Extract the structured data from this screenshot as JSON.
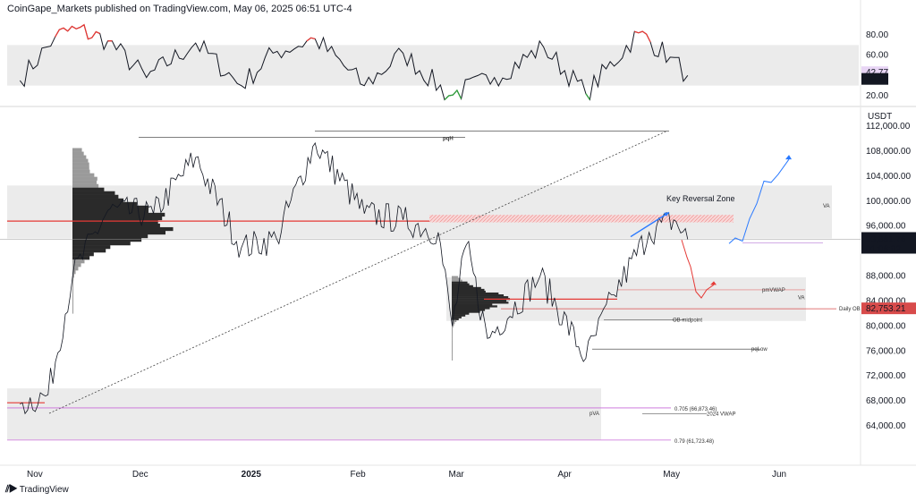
{
  "header": {
    "publisher": "CoinGape_Markets published on TradingView.com, May 06, 2025 06:51 UTC-4"
  },
  "footer": {
    "brand": "TradingView"
  },
  "colors": {
    "price": "#131722",
    "rsi": "#131722",
    "rsi_overbought": "#e53935",
    "rsi_oversold": "#2e9e3a",
    "poc": "#e53935",
    "fib": "#c86ad8",
    "projection_up": "#2979ff",
    "projection_down": "#e53935",
    "band": "#ebebeb"
  },
  "chart_data": [
    {
      "type": "line",
      "panel": "rsi",
      "y_ticks": [
        "80.00",
        "60.00",
        "20.00"
      ],
      "ylim": [
        15,
        90
      ],
      "band": [
        30,
        70
      ],
      "badges": [
        {
          "value": "42.77",
          "style": "light"
        },
        {
          "value": "39.68",
          "style": "dark"
        }
      ],
      "key_points": [
        {
          "x": "2024-10-28",
          "y": 35
        },
        {
          "x": "2024-11-07",
          "y": 78
        },
        {
          "x": "2024-11-13",
          "y": 86
        },
        {
          "x": "2024-11-22",
          "y": 74
        },
        {
          "x": "2024-12-03",
          "y": 38
        },
        {
          "x": "2024-12-17",
          "y": 72
        },
        {
          "x": "2024-12-30",
          "y": 30
        },
        {
          "x": "2025-01-08",
          "y": 62
        },
        {
          "x": "2025-01-20",
          "y": 76
        },
        {
          "x": "2025-02-03",
          "y": 30
        },
        {
          "x": "2025-02-14",
          "y": 62
        },
        {
          "x": "2025-02-27",
          "y": 20
        },
        {
          "x": "2025-03-12",
          "y": 38
        },
        {
          "x": "2025-03-26",
          "y": 68
        },
        {
          "x": "2025-04-07",
          "y": 22
        },
        {
          "x": "2025-04-22",
          "y": 82
        },
        {
          "x": "2025-05-01",
          "y": 58
        },
        {
          "x": "2025-05-06",
          "y": 40
        }
      ]
    },
    {
      "type": "line",
      "panel": "price",
      "currency": "USDT",
      "x_ticks": [
        "Nov",
        "Dec",
        "2025",
        "Feb",
        "Mar",
        "Apr",
        "May",
        "Jun"
      ],
      "y_ticks": [
        "112,000.00",
        "108,000.00",
        "104,000.00",
        "100,000.00",
        "96,000.00",
        "88,000.00",
        "84,000.00",
        "80,000.00",
        "76,000.00",
        "72,000.00",
        "68,000.00",
        "64,000.00"
      ],
      "ylim": [
        60000,
        114000
      ],
      "key_points": [
        {
          "x": "2024-10-28",
          "y": 67500
        },
        {
          "x": "2024-11-05",
          "y": 69000
        },
        {
          "x": "2024-11-12",
          "y": 88000
        },
        {
          "x": "2024-11-22",
          "y": 98500
        },
        {
          "x": "2024-12-05",
          "y": 98000
        },
        {
          "x": "2024-12-17",
          "y": 107000
        },
        {
          "x": "2024-12-30",
          "y": 92500
        },
        {
          "x": "2025-01-09",
          "y": 94000
        },
        {
          "x": "2025-01-20",
          "y": 109300
        },
        {
          "x": "2025-02-03",
          "y": 98000
        },
        {
          "x": "2025-02-14",
          "y": 97000
        },
        {
          "x": "2025-02-24",
          "y": 95000
        },
        {
          "x": "2025-02-28",
          "y": 80000
        },
        {
          "x": "2025-03-04",
          "y": 93000
        },
        {
          "x": "2025-03-10",
          "y": 78000
        },
        {
          "x": "2025-03-25",
          "y": 88000
        },
        {
          "x": "2025-04-07",
          "y": 74800
        },
        {
          "x": "2025-04-15",
          "y": 85000
        },
        {
          "x": "2025-04-25",
          "y": 95000
        },
        {
          "x": "2025-05-02",
          "y": 97000
        },
        {
          "x": "2025-05-06",
          "y": 93881.76
        }
      ],
      "price_badge": {
        "value": "93,881.76",
        "countdown": "01:08:02"
      },
      "daily_ob": {
        "label": "Daily OB",
        "value": "82,753.21"
      },
      "annotations": [
        {
          "text": "Key Reversal Zone"
        },
        {
          "text": "pqH"
        },
        {
          "text": "VA"
        },
        {
          "text": "VA"
        },
        {
          "text": "pVA"
        },
        {
          "text": "pmVWAP"
        },
        {
          "text": "OB midpoint"
        },
        {
          "text": "pqLow"
        },
        {
          "text": "2024 VWAP"
        },
        {
          "text": "0.705 (66,873.46)"
        },
        {
          "text": "0.79 (61,723.48)"
        }
      ]
    }
  ]
}
